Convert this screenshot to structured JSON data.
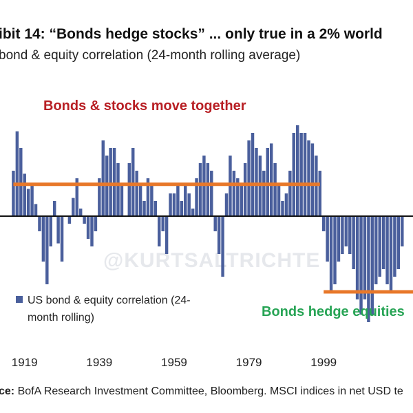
{
  "header": {
    "title": "ibit 14: “Bonds hedge stocks” ... only true in a 2% world",
    "subtitle": "bond & equity correlation (24-month rolling average)"
  },
  "source": {
    "label": "ce:",
    "text": " BofA Research Investment Committee, Bloomberg. MSCI indices in net USD te"
  },
  "watermark": "@KURTSALTRICHTE",
  "colors": {
    "bars": "#4a5f9c",
    "zero_line": "#111111",
    "average_line": "#e8782a",
    "annotation_top": "#b81f24",
    "annotation_bottom": "#27a455"
  },
  "chart_data": {
    "type": "bar",
    "xlabel": "",
    "ylabel": "",
    "x_ticks": [
      "1919",
      "1939",
      "1959",
      "1979",
      "1999"
    ],
    "x_range": [
      1915,
      2024
    ],
    "legend": {
      "label_line1": "US bond & equity correlation (24-",
      "label_line2": "month rolling)",
      "placement": "bottom-left"
    },
    "series": [
      {
        "name": "US bond & equity correlation (24-month rolling)",
        "x": [
          1916,
          1917,
          1918,
          1919,
          1920,
          1921,
          1922,
          1923,
          1924,
          1925,
          1926,
          1927,
          1928,
          1929,
          1930,
          1931,
          1932,
          1933,
          1934,
          1935,
          1936,
          1937,
          1938,
          1939,
          1940,
          1941,
          1942,
          1943,
          1944,
          1945,
          1946,
          1947,
          1948,
          1949,
          1950,
          1951,
          1952,
          1953,
          1954,
          1955,
          1956,
          1957,
          1958,
          1959,
          1960,
          1961,
          1962,
          1963,
          1964,
          1965,
          1966,
          1967,
          1968,
          1969,
          1970,
          1971,
          1972,
          1973,
          1974,
          1975,
          1976,
          1977,
          1978,
          1979,
          1980,
          1981,
          1982,
          1983,
          1984,
          1985,
          1986,
          1987,
          1988,
          1989,
          1990,
          1991,
          1992,
          1993,
          1994,
          1995,
          1996,
          1997,
          1998,
          1999,
          2000,
          2001,
          2002,
          2003,
          2004,
          2005,
          2006,
          2007,
          2008,
          2009,
          2010,
          2011,
          2012,
          2013,
          2014,
          2015,
          2016,
          2017,
          2018,
          2019,
          2020,
          2021,
          2022,
          2023
        ],
        "values": [
          0.3,
          0.56,
          0.45,
          0.28,
          0.18,
          0.2,
          0.08,
          -0.1,
          -0.3,
          -0.45,
          -0.2,
          0.1,
          -0.18,
          -0.3,
          0.0,
          -0.05,
          0.12,
          0.25,
          0.05,
          -0.05,
          -0.15,
          -0.2,
          -0.1,
          0.25,
          0.5,
          0.4,
          0.45,
          0.45,
          0.35,
          0.2,
          0.0,
          0.35,
          0.45,
          0.3,
          0.2,
          0.1,
          0.25,
          0.2,
          0.1,
          -0.2,
          -0.1,
          -0.25,
          0.15,
          0.15,
          0.2,
          0.1,
          0.2,
          0.15,
          0.05,
          0.25,
          0.35,
          0.4,
          0.35,
          0.3,
          -0.1,
          -0.25,
          -0.4,
          0.15,
          0.4,
          0.3,
          0.25,
          0.2,
          0.35,
          0.5,
          0.55,
          0.45,
          0.4,
          0.3,
          0.45,
          0.48,
          0.35,
          0.2,
          0.1,
          0.15,
          0.3,
          0.55,
          0.6,
          0.55,
          0.55,
          0.5,
          0.48,
          0.4,
          0.3,
          -0.1,
          -0.3,
          -0.5,
          -0.45,
          -0.3,
          -0.25,
          -0.2,
          -0.25,
          -0.35,
          -0.55,
          -0.65,
          -0.55,
          -0.7,
          -0.65,
          -0.45,
          -0.4,
          -0.35,
          -0.45,
          -0.5,
          -0.4,
          -0.35,
          -0.2,
          0.0,
          0.0,
          0.0
        ]
      }
    ],
    "reference_lines": [
      {
        "name": "average-line-1916-1998",
        "value": 0.21,
        "x_start": 1916,
        "x_end": 1998
      },
      {
        "name": "average-line-1999-2023",
        "value": -0.5,
        "x_start": 1999,
        "x_end": 2024
      }
    ],
    "annotations": [
      {
        "name": "bonds-stocks-together-label",
        "text": "Bonds & stocks move together"
      },
      {
        "name": "bonds-hedge-equities-label",
        "text": "Bonds hedge equities"
      }
    ],
    "ylim": [
      -1.2,
      1.2
    ],
    "grid": false
  }
}
